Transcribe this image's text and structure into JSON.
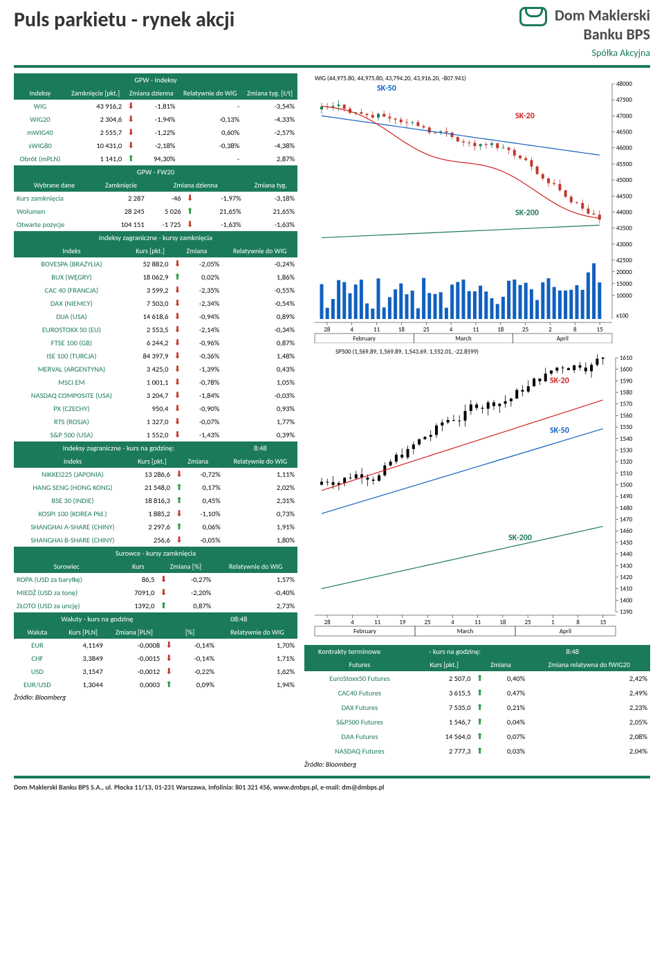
{
  "header": {
    "title": "Puls parkietu - rynek akcji",
    "logo_l1": "Dom Maklerski",
    "logo_l2": "Banku BPS",
    "logo_sub": "Spółka Akcyjna"
  },
  "gpw_idx": {
    "title": "GPW - Indeksy",
    "cols": [
      "Indeksy",
      "Zamknięcie [pkt.]",
      "Zmiana dzienna",
      "Relatywnie do WIG",
      "Zmiana tyg. [t/t]"
    ],
    "rows": [
      {
        "n": "WIG",
        "close": "43 916,2",
        "dir": "dn",
        "chg": "-1,81%",
        "rel": "-",
        "wk": "-3,54%"
      },
      {
        "n": "WIG20",
        "close": "2 304,6",
        "dir": "dn",
        "chg": "-1,94%",
        "rel": "-0,13%",
        "wk": "-4,33%"
      },
      {
        "n": "mWIG40",
        "close": "2 555,7",
        "dir": "dn",
        "chg": "-1,22%",
        "rel": "0,60%",
        "wk": "-2,57%"
      },
      {
        "n": "sWIG80",
        "close": "10 431,0",
        "dir": "dn",
        "chg": "-2,18%",
        "rel": "-0,38%",
        "wk": "-4,38%"
      },
      {
        "n": "Obrót (mPLN)",
        "close": "1 141,0",
        "dir": "up",
        "chg": "94,30%",
        "rel": "-",
        "wk": "2,87%"
      }
    ]
  },
  "fw20": {
    "title": "GPW - FW20",
    "cols": [
      "Wybrane dane",
      "Zamknięcie",
      "Zmiana dzienna",
      "",
      "Zmiana tyg."
    ],
    "rows": [
      {
        "n": "Kurs zamknięcia",
        "a": "2 287",
        "b": "-46",
        "dir": "dn",
        "c": "-1,97%",
        "d": "-3,18%"
      },
      {
        "n": "Wolumen",
        "a": "28 245",
        "b": "5 026",
        "dir": "up",
        "c": "21,65%",
        "d": "21,65%"
      },
      {
        "n": "Otwarte pozycje",
        "a": "104 151",
        "b": "-1 725",
        "dir": "dn",
        "c": "-1,63%",
        "d": "-1,63%"
      }
    ]
  },
  "foreign_close": {
    "title": "Indeksy zagraniczne - kursy zamknięcia",
    "cols": [
      "Indeks",
      "Kurs [pkt.]",
      "Zmiana",
      "Relatywnie do WIG"
    ],
    "rows": [
      {
        "n": "BOVESPA (BRAZYLIA)",
        "v": "52 882,0",
        "dir": "dn",
        "chg": "-2,05%",
        "rel": "-0,24%"
      },
      {
        "n": "BUX (WĘGRY)",
        "v": "18 062,9",
        "dir": "up",
        "chg": "0,02%",
        "rel": "1,86%"
      },
      {
        "n": "CAC 40 (FRANCJA)",
        "v": "3 599,2",
        "dir": "dn",
        "chg": "-2,35%",
        "rel": "-0,55%"
      },
      {
        "n": "DAX (NIEMCY)",
        "v": "7 503,0",
        "dir": "dn",
        "chg": "-2,34%",
        "rel": "-0,54%"
      },
      {
        "n": "DIJA (USA)",
        "v": "14 618,6",
        "dir": "dn",
        "chg": "-0,94%",
        "rel": "0,89%"
      },
      {
        "n": "EUROSTOXX 50 (EU)",
        "v": "2 553,5",
        "dir": "dn",
        "chg": "-2,14%",
        "rel": "-0,34%"
      },
      {
        "n": "FTSE 100 (GB)",
        "v": "6 244,2",
        "dir": "dn",
        "chg": "-0,96%",
        "rel": "0,87%"
      },
      {
        "n": "ISE 100 (TURCJA)",
        "v": "84 397,9",
        "dir": "dn",
        "chg": "-0,36%",
        "rel": "1,48%"
      },
      {
        "n": "MERVAL (ARGENTYNA)",
        "v": "3 425,0",
        "dir": "dn",
        "chg": "-1,39%",
        "rel": "0,43%"
      },
      {
        "n": "MSCI EM",
        "v": "1 001,1",
        "dir": "dn",
        "chg": "-0,78%",
        "rel": "1,05%"
      },
      {
        "n": "NASDAQ COMPOSITE (USA)",
        "v": "3 204,7",
        "dir": "dn",
        "chg": "-1,84%",
        "rel": "-0,03%"
      },
      {
        "n": "PX (CZECHY)",
        "v": "950,4",
        "dir": "dn",
        "chg": "-0,90%",
        "rel": "0,93%"
      },
      {
        "n": "RTS (ROSJA)",
        "v": "1 327,0",
        "dir": "dn",
        "chg": "-0,07%",
        "rel": "1,77%"
      },
      {
        "n": "S&P 500 (USA)",
        "v": "1 552,0",
        "dir": "dn",
        "chg": "-1,43%",
        "rel": "0,39%"
      }
    ]
  },
  "foreign_hour": {
    "title": "Indeksy zagraniczne - kurs na godzinę:",
    "time": "8:48",
    "cols": [
      "Indeks",
      "Kurs [pkt.]",
      "Zmiana",
      "Relatywnie do WIG"
    ],
    "rows": [
      {
        "n": "NIKKEI225 (JAPONIA)",
        "v": "13 286,6",
        "dir": "dn",
        "chg": "-0,72%",
        "rel": "1,11%"
      },
      {
        "n": "HANG SENG (HONG KONG)",
        "v": "21 548,0",
        "dir": "up",
        "chg": "0,17%",
        "rel": "2,02%"
      },
      {
        "n": "BSE 30 (INDIE)",
        "v": "18 816,3",
        "dir": "up",
        "chg": "0,45%",
        "rel": "2,31%"
      },
      {
        "n": "KOSPI 100 (KOREA Płd.)",
        "v": "1 885,2",
        "dir": "dn",
        "chg": "-1,10%",
        "rel": "0,73%"
      },
      {
        "n": "SHANGHAI A-SHARE (CHINY)",
        "v": "2 297,6",
        "dir": "up",
        "chg": "0,06%",
        "rel": "1,91%"
      },
      {
        "n": "SHANGHAI B-SHARE (CHINY)",
        "v": "256,6",
        "dir": "dn",
        "chg": "-0,05%",
        "rel": "1,80%"
      }
    ]
  },
  "commodities": {
    "title": "Surowce - kursy zamknięcia",
    "cols": [
      "Surowiec",
      "Kurs",
      "Zmiana [%]",
      "Relatywnie do WIG"
    ],
    "rows": [
      {
        "n": "ROPA (USD za baryłkę)",
        "v": "86,5",
        "dir": "dn",
        "chg": "-0,27%",
        "rel": "1,57%"
      },
      {
        "n": "MIEDŹ (USD za tonę)",
        "v": "7091,0",
        "dir": "dn",
        "chg": "-2,20%",
        "rel": "-0,40%"
      },
      {
        "n": "ZŁOTO (USD za uncję)",
        "v": "1392,0",
        "dir": "up",
        "chg": "0,87%",
        "rel": "2,73%"
      }
    ]
  },
  "fx": {
    "title": "Waluty - kurs na godzinę",
    "time": "08:48",
    "cols": [
      "Waluta",
      "Kurs [PLN]",
      "Zmiana [PLN]",
      "[%]",
      "Relatywnie do WIG"
    ],
    "rows": [
      {
        "n": "EUR",
        "v": "4,1149",
        "chg": "-0,0008",
        "dir": "dn",
        "pct": "-0,14%",
        "rel": "1,70%"
      },
      {
        "n": "CHF",
        "v": "3,3849",
        "chg": "-0,0015",
        "dir": "dn",
        "pct": "-0,14%",
        "rel": "1,71%"
      },
      {
        "n": "USD",
        "v": "3,1547",
        "chg": "-0,0012",
        "dir": "dn",
        "pct": "-0,22%",
        "rel": "1,62%"
      },
      {
        "n": "EUR/USD",
        "v": "1,3044",
        "chg": "0,0003",
        "dir": "up",
        "pct": "0,09%",
        "rel": "1,94%"
      }
    ]
  },
  "source": "Źródło: Bloomberg",
  "chart1": {
    "title": "WIG (44,975.80, 44,975.80, 43,794.20, 43,916.20, -807.941)",
    "labels": [
      "SK-50",
      "SK-20",
      "SK-200"
    ],
    "label_colors": [
      "#1060c0",
      "#d02020",
      "#1b7a5a"
    ],
    "x_months": [
      "February",
      "March",
      "April"
    ],
    "x_ticks": [
      "28",
      "4",
      "11",
      "18",
      "25",
      "4",
      "11",
      "18",
      "25",
      "2",
      "8",
      "15"
    ],
    "y_ticks_upper": [
      48000,
      47500,
      47000,
      46500,
      46000,
      45500,
      45000,
      44500,
      44000,
      43500,
      43000,
      42500
    ],
    "y_ticks_vol": [
      20000,
      15000,
      10000
    ],
    "vol_tag": "x100",
    "colors": {
      "candle_up": "#1b7a5a",
      "candle_dn": "#c0392b",
      "sk50": "#1060c0",
      "sk20": "#d02020",
      "sk200": "#1b7a5a",
      "grid": "#d0d0d0",
      "volume": "#1060c0"
    }
  },
  "chart2": {
    "title": "SP500 (1,569.89, 1,569.89, 1,543.69, 1,552.01, -22.8599)",
    "labels": [
      "SK-20",
      "SK-50",
      "SK-200"
    ],
    "label_colors": [
      "#d02020",
      "#1060c0",
      "#1b7a5a"
    ],
    "x_months": [
      "February",
      "March",
      "April"
    ],
    "x_ticks": [
      "28",
      "4",
      "11",
      "19",
      "25",
      "4",
      "11",
      "18",
      "25",
      "1",
      "8",
      "15"
    ],
    "y_ticks": [
      1610,
      1600,
      1590,
      1580,
      1570,
      1560,
      1550,
      1540,
      1530,
      1520,
      1510,
      1500,
      1490,
      1480,
      1470,
      1460,
      1450,
      1440,
      1430,
      1420,
      1410,
      1400,
      1390
    ],
    "colors": {
      "candle": "#000",
      "sk50": "#1060c0",
      "sk20": "#d02020",
      "sk200": "#1b7a5a",
      "grid": "#d0d0d0"
    }
  },
  "futures": {
    "title_l": "Kontrakty terminowe",
    "title_r": "- kurs na godzinę:",
    "time": "8:48",
    "cols": [
      "Futures",
      "Kurs [pkt.]",
      "Zmiana",
      "Zmiana relatywna do fWIG20"
    ],
    "rows": [
      {
        "n": "EuroStoxx50 Futures",
        "v": "2 507,0",
        "dir": "up",
        "chg": "0,40%",
        "rel": "2,42%"
      },
      {
        "n": "CAC40 Futures",
        "v": "3 615,5",
        "dir": "up",
        "chg": "0,47%",
        "rel": "2,49%"
      },
      {
        "n": "DAX Futures",
        "v": "7 535,0",
        "dir": "up",
        "chg": "0,21%",
        "rel": "2,23%"
      },
      {
        "n": "S&P500 Futures",
        "v": "1 546,7",
        "dir": "up",
        "chg": "0,04%",
        "rel": "2,05%"
      },
      {
        "n": "DJIA Futures",
        "v": "14 564,0",
        "dir": "up",
        "chg": "0,07%",
        "rel": "2,08%"
      },
      {
        "n": "NASDAQ Futures",
        "v": "2 777,3",
        "dir": "up",
        "chg": "0,03%",
        "rel": "2,04%"
      }
    ]
  },
  "bottom": "Dom Maklerski Banku BPS S.A., ul. Płocka 11/13, 01-231 Warszawa, infolinia: 801 321 456, www.dmbps.pl, e-mail: dm@dmbps.pl"
}
